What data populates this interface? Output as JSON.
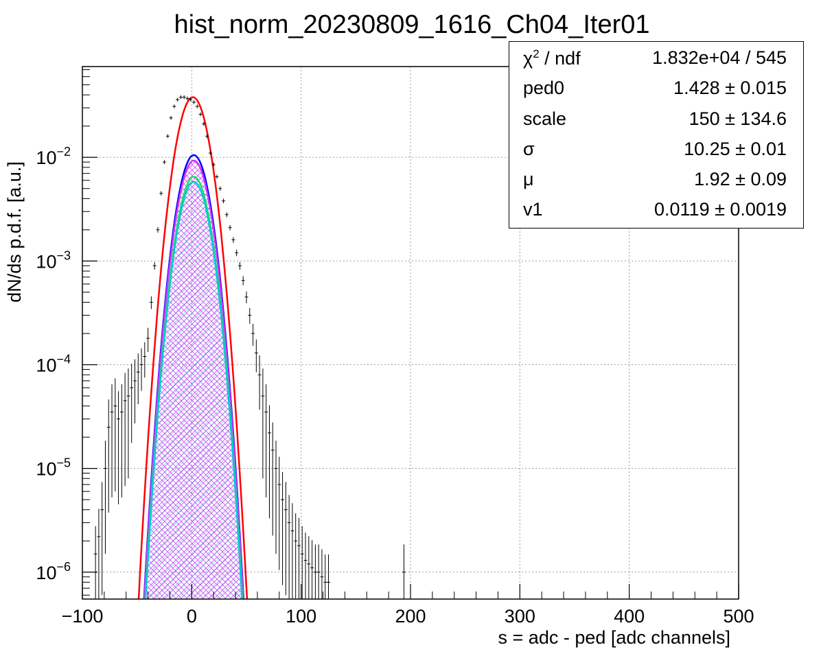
{
  "chart_data": {
    "type": "line",
    "title": "hist_norm_20230809_1616_Ch04_Iter01",
    "xlabel": "s = adc - ped [adc channels]",
    "ylabel": "dN/ds p.d.f. [a.u.]",
    "xlim": [
      -100,
      500
    ],
    "ylim": [
      5.5e-07,
      0.075
    ],
    "y_scale": "log",
    "grid": true,
    "x_ticks": [
      -100,
      0,
      100,
      200,
      300,
      400,
      500
    ],
    "x_tick_labels": [
      "−100",
      "0",
      "100",
      "200",
      "300",
      "400",
      "500"
    ],
    "y_ticks": [
      1e-06,
      1e-05,
      0.0001,
      0.001,
      0.01
    ],
    "y_tick_labels": [
      {
        "base": "10",
        "exp": "−6"
      },
      {
        "base": "10",
        "exp": "−5"
      },
      {
        "base": "10",
        "exp": "−4"
      },
      {
        "base": "10",
        "exp": "−3"
      },
      {
        "base": "10",
        "exp": "−2"
      }
    ],
    "series": [
      {
        "style": "data-points",
        "color": "#000000",
        "x": [
          -88,
          -85,
          -82,
          -79,
          -76,
          -73,
          -70,
          -67,
          -64,
          -61,
          -58,
          -55,
          -52,
          -49,
          -46,
          -43,
          -40,
          -37,
          -34,
          -31,
          -28,
          -25,
          -22,
          -19,
          -16,
          -13,
          -10,
          -7,
          -4,
          -1,
          2,
          5,
          8,
          11,
          14,
          17,
          20,
          23,
          26,
          29,
          32,
          35,
          38,
          41,
          44,
          47,
          50,
          53,
          56,
          59,
          62,
          65,
          68,
          71,
          74,
          77,
          80,
          83,
          86,
          89,
          92,
          95,
          98,
          101,
          104,
          107,
          110,
          113,
          116,
          119,
          122,
          125,
          194
        ],
        "y": [
          1.5e-06,
          2.2e-06,
          4e-06,
          1e-05,
          2.5e-05,
          3.5e-05,
          4e-05,
          3e-05,
          3.5e-05,
          4.5e-05,
          5e-05,
          6e-05,
          7e-05,
          8.5e-05,
          0.0001,
          0.00012,
          0.00018,
          0.0004,
          0.0009,
          0.002,
          0.0045,
          0.009,
          0.016,
          0.024,
          0.031,
          0.036,
          0.038,
          0.038,
          0.037,
          0.036,
          0.034,
          0.031,
          0.026,
          0.021,
          0.016,
          0.011,
          0.0085,
          0.0065,
          0.005,
          0.0038,
          0.0028,
          0.0021,
          0.0016,
          0.0012,
          0.0009,
          0.00065,
          0.00045,
          0.0003,
          0.0002,
          0.00013,
          8e-05,
          5e-05,
          3.5e-05,
          2.2e-05,
          1.5e-05,
          1e-05,
          7e-06,
          5e-06,
          4e-06,
          3e-06,
          2.5e-06,
          2e-06,
          1.8e-06,
          1.5e-06,
          1.3e-06,
          1.2e-06,
          1.1e-06,
          1e-06,
          1e-06,
          9e-07,
          8e-07,
          8e-07,
          1e-06
        ]
      },
      {
        "style": "curve",
        "color": "#ff0000",
        "peak": 0.038,
        "mean": 1.0,
        "sigma": 10.5
      },
      {
        "style": "curve",
        "color": "#0000ff",
        "peak": 0.0105,
        "mean": 1.9,
        "sigma": 10.25
      },
      {
        "style": "curve",
        "color": "#cc33ff",
        "peak": 0.0093,
        "mean": 1.9,
        "sigma": 10.25,
        "hatch": "crosshatch"
      },
      {
        "style": "curve",
        "color": "#22dd66",
        "peak": 0.0065,
        "mean": 1.9,
        "sigma": 10.25
      },
      {
        "style": "curve",
        "color": "#00cccc",
        "peak": 0.0058,
        "mean": 1.9,
        "sigma": 10.25,
        "hatch": "diagonal"
      }
    ]
  },
  "stats": {
    "rows": [
      {
        "name_sym": "χ",
        "name_sup": "2",
        "name_text": " / ndf",
        "value": "1.832e+04 / 545"
      },
      {
        "name_sym": "",
        "name_sup": "",
        "name_text": "ped0",
        "value": "1.428 ± 0.015"
      },
      {
        "name_sym": "",
        "name_sup": "",
        "name_text": "scale",
        "value": "150 ± 134.6"
      },
      {
        "name_sym": "σ",
        "name_sup": "",
        "name_text": "",
        "value": "10.25 ± 0.01"
      },
      {
        "name_sym": "μ",
        "name_sup": "",
        "name_text": "",
        "value": "1.92 ± 0.09"
      },
      {
        "name_sym": "",
        "name_sup": "",
        "name_text": "v1",
        "value": "0.0119 ± 0.0019"
      }
    ]
  }
}
